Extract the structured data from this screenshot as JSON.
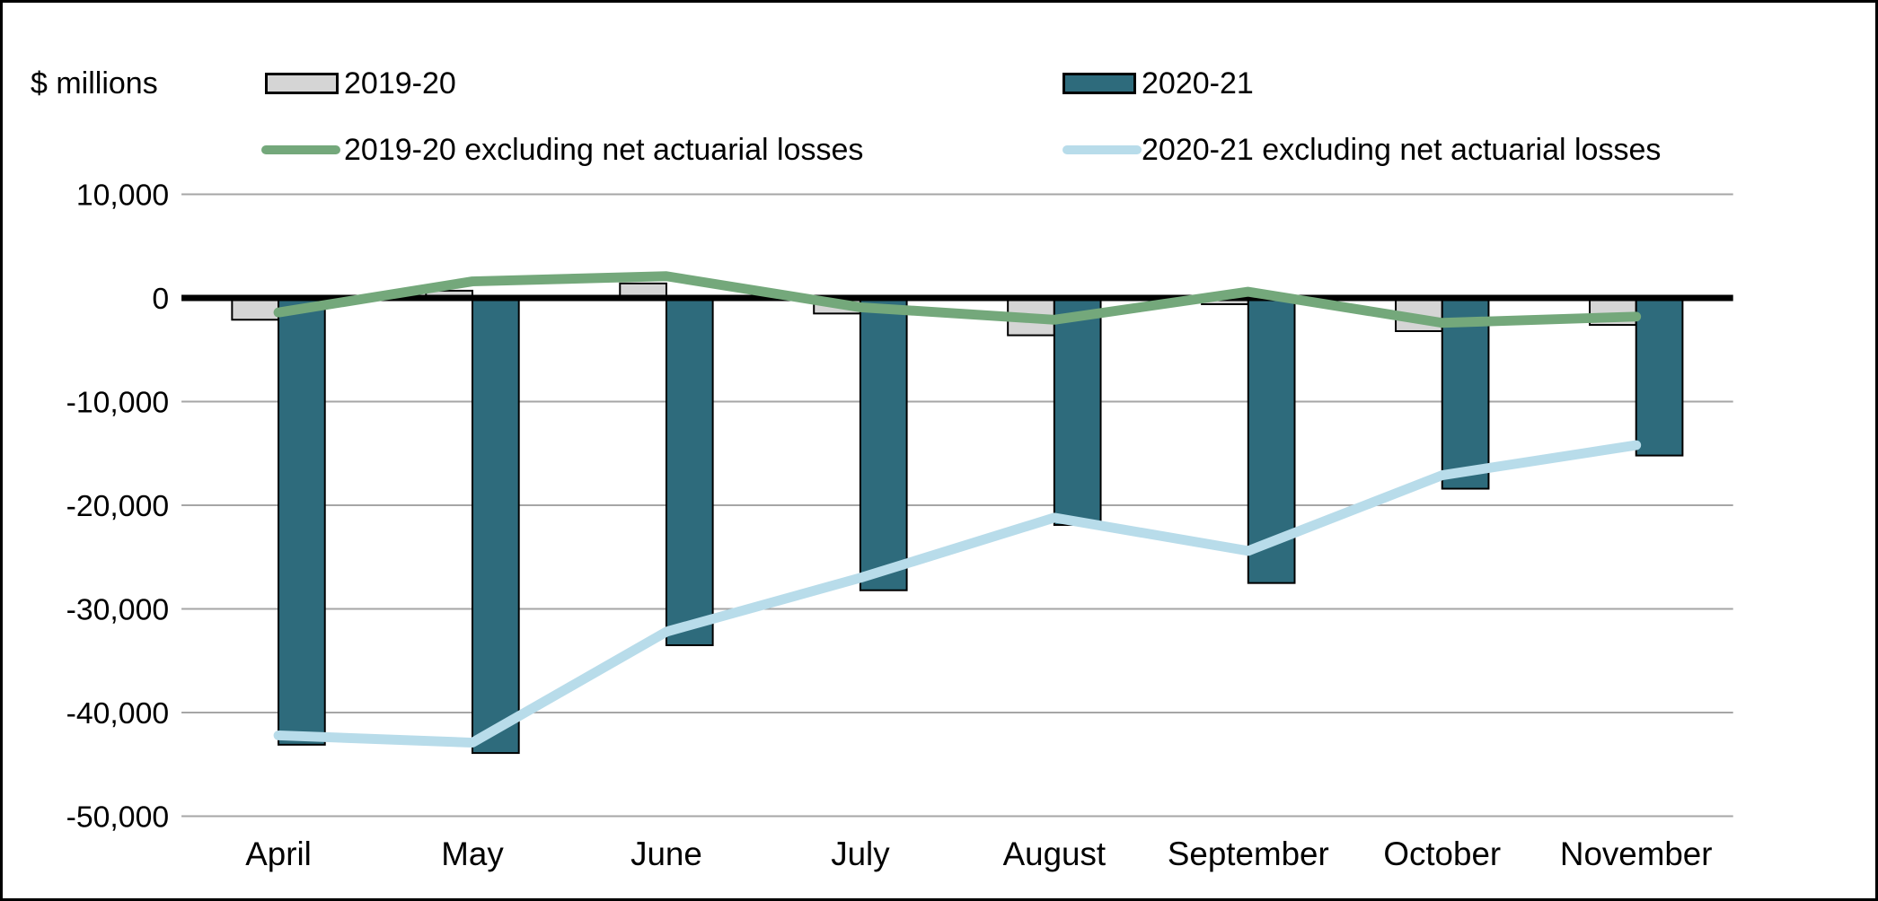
{
  "unit_label": "$ millions",
  "chart_data": {
    "type": "bar",
    "subtype": "bar-line-combo",
    "title": "",
    "xlabel": "",
    "ylabel": "$ millions",
    "categories": [
      "April",
      "May",
      "June",
      "July",
      "August",
      "September",
      "October",
      "November"
    ],
    "series": [
      {
        "name": "2019-20",
        "kind": "bar",
        "color": "#d5d5d5",
        "border_color": "#000000",
        "values": [
          -2100,
          700,
          1400,
          -1500,
          -3600,
          -600,
          -3200,
          -2600
        ]
      },
      {
        "name": "2020-21",
        "kind": "bar",
        "color": "#2e6b7c",
        "border_color": "#000000",
        "values": [
          -43100,
          -43900,
          -33500,
          -28200,
          -21900,
          -27500,
          -18400,
          -15200
        ]
      },
      {
        "name": "2019-20 excluding net actuarial losses",
        "kind": "line",
        "color": "#74a87b",
        "values": [
          -1400,
          1600,
          2100,
          -900,
          -2100,
          600,
          -2400,
          -1800
        ]
      },
      {
        "name": "2020-21 excluding net actuarial losses",
        "kind": "line",
        "color": "#b8dcea",
        "values": [
          -42200,
          -42900,
          -32200,
          -27000,
          -21200,
          -24400,
          -17100,
          -14200
        ]
      }
    ],
    "y_axis": {
      "min": -50000,
      "max": 10000,
      "tick_step": 10000,
      "tick_labels": [
        "10,000",
        "0",
        "-10,000",
        "-20,000",
        "-30,000",
        "-40,000",
        "-50,000"
      ],
      "grid_color": "#a6a6a6",
      "zero_line_color": "#000000"
    },
    "legend_position": "top",
    "grid": true
  }
}
